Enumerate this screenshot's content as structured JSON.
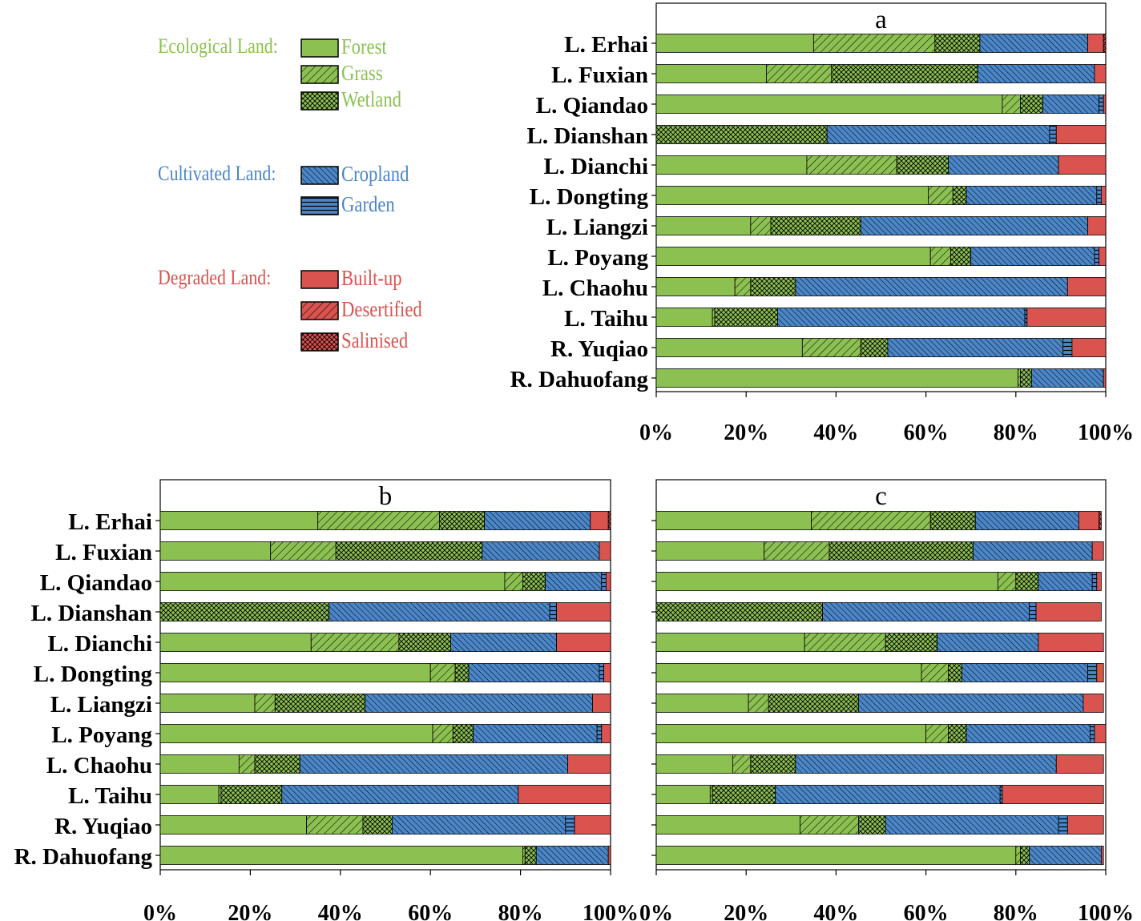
{
  "legend": {
    "groups": [
      {
        "label": "Ecological Land",
        "color": "#8CC152",
        "items": [
          {
            "name": "Forest",
            "pattern": "solid"
          },
          {
            "name": "Grass",
            "pattern": "diag"
          },
          {
            "name": "Wetland",
            "pattern": "cross"
          }
        ]
      },
      {
        "label": "Cultivated Land",
        "color": "#4A86C8",
        "items": [
          {
            "name": "Cropland",
            "pattern": "backdiag"
          },
          {
            "name": "Garden",
            "pattern": "horiz"
          }
        ]
      },
      {
        "label": "Degraded Land",
        "color": "#D9534F",
        "items": [
          {
            "name": "Built-up",
            "pattern": "solid"
          },
          {
            "name": "Desertified",
            "pattern": "diag"
          },
          {
            "name": "Salinised",
            "pattern": "cross"
          }
        ]
      }
    ],
    "separator": ":"
  },
  "chart_data": [
    {
      "type": "bar",
      "orientation": "horizontal",
      "stacked": true,
      "title": "a",
      "x_ticks": [
        "0%",
        "20%",
        "40%",
        "60%",
        "80%",
        "100%"
      ],
      "xlim": [
        0,
        100
      ],
      "categories": [
        "L. Erhai",
        "L. Fuxian",
        "L. Qiandao",
        "L. Dianshan",
        "L. Dianchi",
        "L. Dongting",
        "L. Liangzi",
        "L. Poyang",
        "L. Chaohu",
        "L. Taihu",
        "R. Yuqiao",
        "R. Dahuofang"
      ],
      "series": [
        {
          "name": "Forest",
          "values": [
            35,
            24.5,
            77,
            0,
            33.5,
            60.5,
            21,
            61,
            17.5,
            12.5,
            32.5,
            80.5
          ]
        },
        {
          "name": "Grass",
          "values": [
            27,
            14.5,
            4,
            0,
            20,
            5.5,
            4.5,
            4.5,
            3.5,
            0.5,
            13,
            0.5
          ]
        },
        {
          "name": "Wetland",
          "values": [
            10,
            32.5,
            5,
            38,
            11.5,
            3,
            20,
            4.5,
            10,
            14,
            6,
            2.5
          ]
        },
        {
          "name": "Cropland",
          "values": [
            24,
            26,
            12.5,
            49.5,
            24.5,
            29,
            50.5,
            27.5,
            60.5,
            55,
            39,
            16
          ]
        },
        {
          "name": "Garden",
          "values": [
            0,
            0,
            1,
            1.5,
            0,
            1,
            0,
            1,
            0,
            0.5,
            2,
            0
          ]
        },
        {
          "name": "Built-up",
          "values": [
            3.5,
            2.5,
            0.5,
            11,
            10.5,
            1,
            4,
            1.5,
            8.5,
            17.5,
            7.5,
            0.5
          ]
        },
        {
          "name": "Desertified",
          "values": [
            0,
            0,
            0,
            0,
            0,
            0,
            0,
            0,
            0,
            0,
            0,
            0
          ]
        },
        {
          "name": "Salinised",
          "values": [
            0.5,
            0,
            0,
            0,
            0,
            0,
            0,
            0,
            0,
            0,
            0,
            0
          ]
        }
      ]
    },
    {
      "type": "bar",
      "orientation": "horizontal",
      "stacked": true,
      "title": "b",
      "x_ticks": [
        "0%",
        "20%",
        "40%",
        "60%",
        "80%",
        "100%"
      ],
      "xlim": [
        0,
        100
      ],
      "categories": [
        "L. Erhai",
        "L. Fuxian",
        "L. Qiandao",
        "L. Dianshan",
        "L. Dianchi",
        "L. Dongting",
        "L. Liangzi",
        "L. Poyang",
        "L. Chaohu",
        "L. Taihu",
        "R. Yuqiao",
        "R. Dahuofang"
      ],
      "series": [
        {
          "name": "Forest",
          "values": [
            35,
            24.5,
            76.5,
            0,
            33.5,
            60,
            21,
            60.5,
            17.5,
            13,
            32.5,
            80.5
          ]
        },
        {
          "name": "Grass",
          "values": [
            27,
            14.5,
            4,
            0,
            19.5,
            5.5,
            4.5,
            4.5,
            3.5,
            0.5,
            12.5,
            0.5
          ]
        },
        {
          "name": "Wetland",
          "values": [
            10,
            32.5,
            5,
            37.5,
            11.5,
            3,
            20,
            4.5,
            10,
            13.5,
            6.5,
            2.5
          ]
        },
        {
          "name": "Cropland",
          "values": [
            23.5,
            26,
            12.5,
            49,
            23.5,
            29,
            50.5,
            27.5,
            59.5,
            52.5,
            38.5,
            16
          ]
        },
        {
          "name": "Garden",
          "values": [
            0,
            0,
            1,
            1.5,
            0,
            1,
            0,
            1,
            0,
            0,
            2,
            0
          ]
        },
        {
          "name": "Built-up",
          "values": [
            4,
            2.5,
            1,
            12,
            12,
            1.5,
            4,
            2,
            9.5,
            20.5,
            8,
            0.5
          ]
        },
        {
          "name": "Desertified",
          "values": [
            0,
            0,
            0,
            0,
            0,
            0,
            0,
            0,
            0,
            0,
            0,
            0
          ]
        },
        {
          "name": "Salinised",
          "values": [
            0.5,
            0,
            0,
            0,
            0,
            0,
            0,
            0,
            0,
            0,
            0,
            0
          ]
        }
      ]
    },
    {
      "type": "bar",
      "orientation": "horizontal",
      "stacked": true,
      "title": "c",
      "x_ticks": [
        "0%",
        "20%",
        "40%",
        "60%",
        "80%",
        "100%"
      ],
      "xlim": [
        0,
        100
      ],
      "categories": [
        "L. Erhai",
        "L. Fuxian",
        "L. Qiandao",
        "L. Dianshan",
        "L. Dianchi",
        "L. Dongting",
        "L. Liangzi",
        "L. Poyang",
        "L. Chaohu",
        "L. Taihu",
        "R. Yuqiao",
        "R. Dahuofang"
      ],
      "series": [
        {
          "name": "Forest",
          "values": [
            34.5,
            24,
            76,
            0,
            33,
            59,
            20.5,
            60,
            17,
            12,
            32,
            80
          ]
        },
        {
          "name": "Grass",
          "values": [
            26.5,
            14.5,
            4,
            0,
            18,
            6,
            4.5,
            5,
            4,
            0.5,
            13,
            1
          ]
        },
        {
          "name": "Wetland",
          "values": [
            10,
            32,
            5,
            37,
            11.5,
            3,
            20,
            4,
            10,
            14,
            6,
            2
          ]
        },
        {
          "name": "Cropland",
          "values": [
            23,
            26.5,
            12,
            46,
            22.5,
            28,
            50,
            27.5,
            58,
            50,
            38.5,
            16
          ]
        },
        {
          "name": "Garden",
          "values": [
            0,
            0,
            1,
            1.5,
            0,
            2,
            0,
            1,
            0,
            0.5,
            2,
            0
          ]
        },
        {
          "name": "Built-up",
          "values": [
            4.5,
            2.5,
            1,
            14.5,
            14.5,
            1.5,
            4.5,
            2.5,
            10.5,
            22.5,
            8,
            0.5
          ]
        },
        {
          "name": "Desertified",
          "values": [
            0,
            0,
            0,
            0,
            0,
            0,
            0,
            0,
            0,
            0,
            0,
            0
          ]
        },
        {
          "name": "Salinised",
          "values": [
            0.5,
            0,
            0,
            0,
            0,
            0,
            0,
            0,
            0,
            0,
            0,
            0
          ]
        }
      ]
    }
  ]
}
